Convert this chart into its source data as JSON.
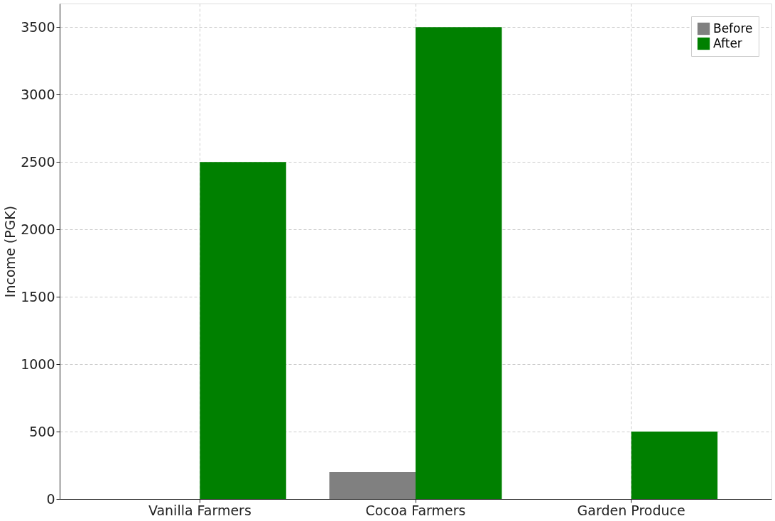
{
  "chart_data": {
    "type": "bar",
    "ylabel": "Income (PGK)",
    "categories": [
      "Vanilla Farmers",
      "Cocoa Farmers",
      "Garden Produce"
    ],
    "series": [
      {
        "name": "Before",
        "color": "#808080",
        "values": [
          0,
          200,
          0
        ]
      },
      {
        "name": "After",
        "color": "#008000",
        "values": [
          2500,
          3500,
          500
        ]
      }
    ],
    "ylim": [
      0,
      3675
    ],
    "yticks": [
      0,
      500,
      1000,
      1500,
      2000,
      2500,
      3000,
      3500
    ],
    "grid": true,
    "legend": "top right"
  }
}
